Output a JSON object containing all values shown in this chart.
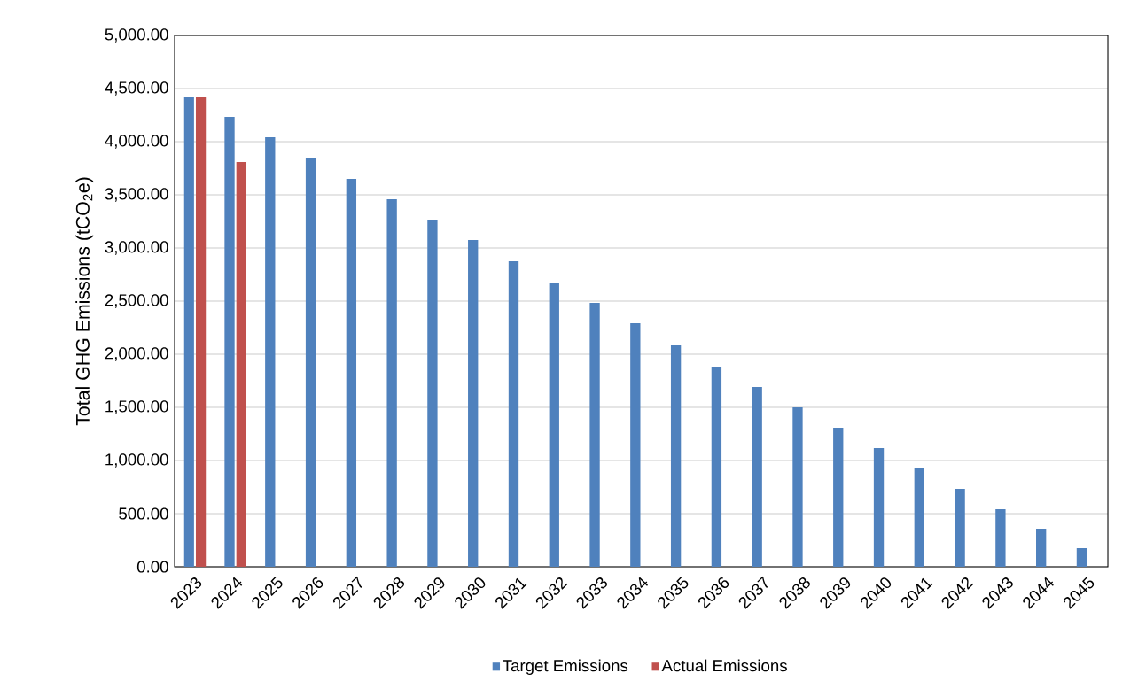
{
  "chart_data": {
    "type": "bar",
    "ylabel": "Total GHG Emissions (tCO$_{2}$e)",
    "categories": [
      "2023",
      "2024",
      "2025",
      "2026",
      "2027",
      "2028",
      "2029",
      "2030",
      "2031",
      "2032",
      "2033",
      "2034",
      "2035",
      "2036",
      "2037",
      "2038",
      "2039",
      "2040",
      "2041",
      "2042",
      "2043",
      "2044",
      "2045"
    ],
    "series": [
      {
        "name": "Target Emissions",
        "color": "#4f81bd",
        "values": [
          4425,
          4233,
          4042,
          3850,
          3650,
          3458,
          3267,
          3075,
          2875,
          2675,
          2483,
          2292,
          2083,
          1883,
          1692,
          1500,
          1308,
          1117,
          925,
          733,
          542,
          358,
          175
        ]
      },
      {
        "name": "Actual Emissions",
        "color": "#c0504d",
        "values": [
          4425,
          3808,
          null,
          null,
          null,
          null,
          null,
          null,
          null,
          null,
          null,
          null,
          null,
          null,
          null,
          null,
          null,
          null,
          null,
          null,
          null,
          null,
          null
        ]
      }
    ],
    "ylim": [
      0,
      5000
    ],
    "yticks": [
      {
        "value": 0,
        "label": "0.00"
      },
      {
        "value": 500,
        "label": "500.00"
      },
      {
        "value": 1000,
        "label": "1,000.00"
      },
      {
        "value": 1500,
        "label": "1,500.00"
      },
      {
        "value": 2000,
        "label": "2,000.00"
      },
      {
        "value": 2500,
        "label": "2,500.00"
      },
      {
        "value": 3000,
        "label": "3,000.00"
      },
      {
        "value": 3500,
        "label": "3,500.00"
      },
      {
        "value": 4000,
        "label": "4,000.00"
      },
      {
        "value": 4500,
        "label": "4,500.00"
      },
      {
        "value": 5000,
        "label": "5,000.00"
      }
    ],
    "grid": "y",
    "legend": "bottom"
  }
}
